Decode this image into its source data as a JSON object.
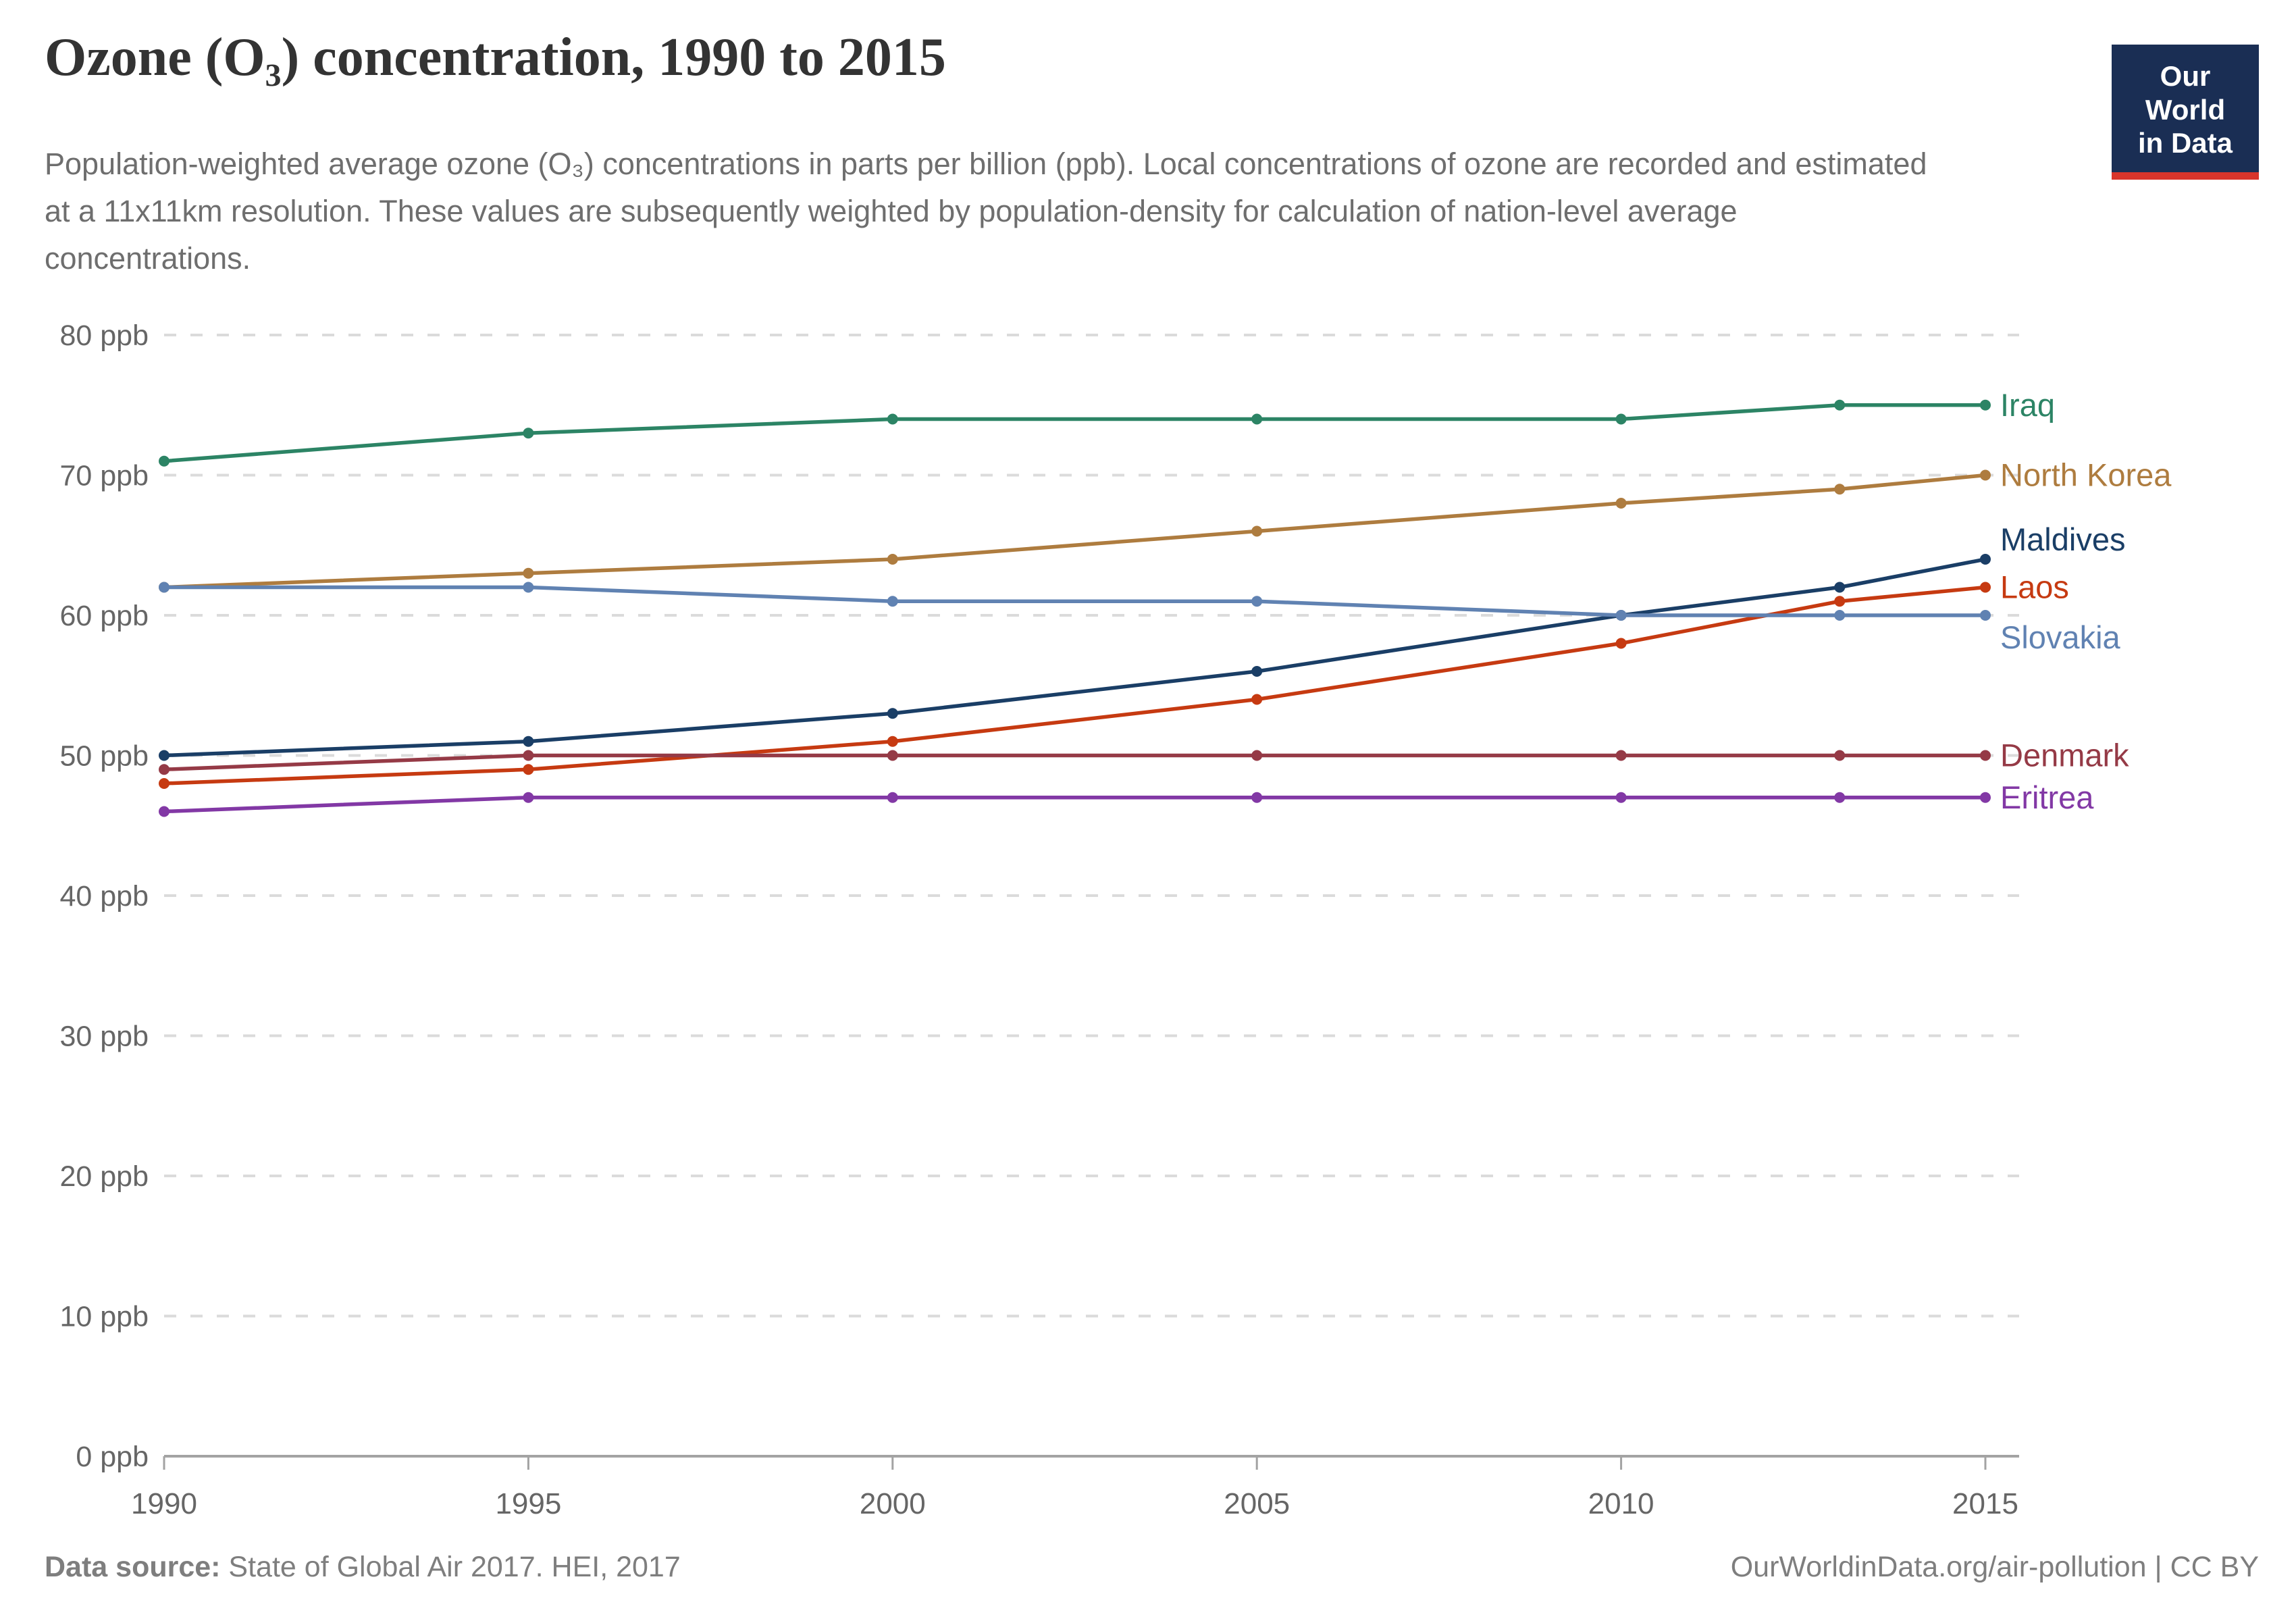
{
  "header": {
    "title": "Ozone (O₃) concentration, 1990 to 2015",
    "subtitle": "Population-weighted average ozone (O₃) concentrations in parts per billion (ppb). Local concentrations of ozone are recorded and estimated at a 11x11km resolution. These values are subsequently weighted by population-density for calculation of nation-level average concentrations.",
    "logo": {
      "line1": "Our World",
      "line2": "in Data"
    }
  },
  "chart_data": {
    "type": "line",
    "title": "Ozone (O₃) concentration, 1990 to 2015",
    "unit": "ppb",
    "x": [
      1990,
      1995,
      2000,
      2005,
      2010,
      2013,
      2015
    ],
    "x_ticks": [
      1990,
      1995,
      2000,
      2005,
      2010,
      2015
    ],
    "y_ticks": [
      0,
      10,
      20,
      30,
      40,
      50,
      60,
      70,
      80
    ],
    "y_tick_suffix": " ppb",
    "xlim": [
      1990,
      2015
    ],
    "ylim": [
      0,
      80
    ],
    "grid": "horizontal-dashed",
    "legend_position": "right-end-labels",
    "series": [
      {
        "name": "Iraq",
        "color": "#2c8465",
        "values": [
          71,
          73,
          74,
          74,
          74,
          75,
          75
        ],
        "label_at": 75.0
      },
      {
        "name": "North Korea",
        "color": "#ae7c3f",
        "values": [
          62,
          63,
          64,
          66,
          68,
          69,
          70
        ],
        "label_at": 70.0
      },
      {
        "name": "Maldives",
        "color": "#1a3e66",
        "values": [
          50,
          51,
          53,
          56,
          60,
          62,
          64
        ],
        "label_at": 65.4
      },
      {
        "name": "Laos",
        "color": "#c63a11",
        "values": [
          48,
          49,
          51,
          54,
          58,
          61,
          62
        ],
        "label_at": 62.0
      },
      {
        "name": "Slovakia",
        "color": "#6082b2",
        "values": [
          62,
          62,
          61,
          61,
          60,
          60,
          60
        ],
        "label_at": 58.4
      },
      {
        "name": "Denmark",
        "color": "#953a46",
        "values": [
          49,
          50,
          50,
          50,
          50,
          50,
          50
        ],
        "label_at": 50.0
      },
      {
        "name": "Eritrea",
        "color": "#8238a5",
        "values": [
          46,
          47,
          47,
          47,
          47,
          47,
          47
        ],
        "label_at": 47.0
      }
    ]
  },
  "footer": {
    "source_label": "Data source:",
    "source_text": " State of Global Air 2017. HEI, 2017",
    "right_text": "OurWorldinData.org/air-pollution | CC BY"
  },
  "colors": {
    "grid": "#dbdbdb",
    "axis": "#a3a3a3",
    "tick_text": "#666666",
    "logo_bg": "#1a2e54",
    "logo_bar": "#d9352b"
  }
}
